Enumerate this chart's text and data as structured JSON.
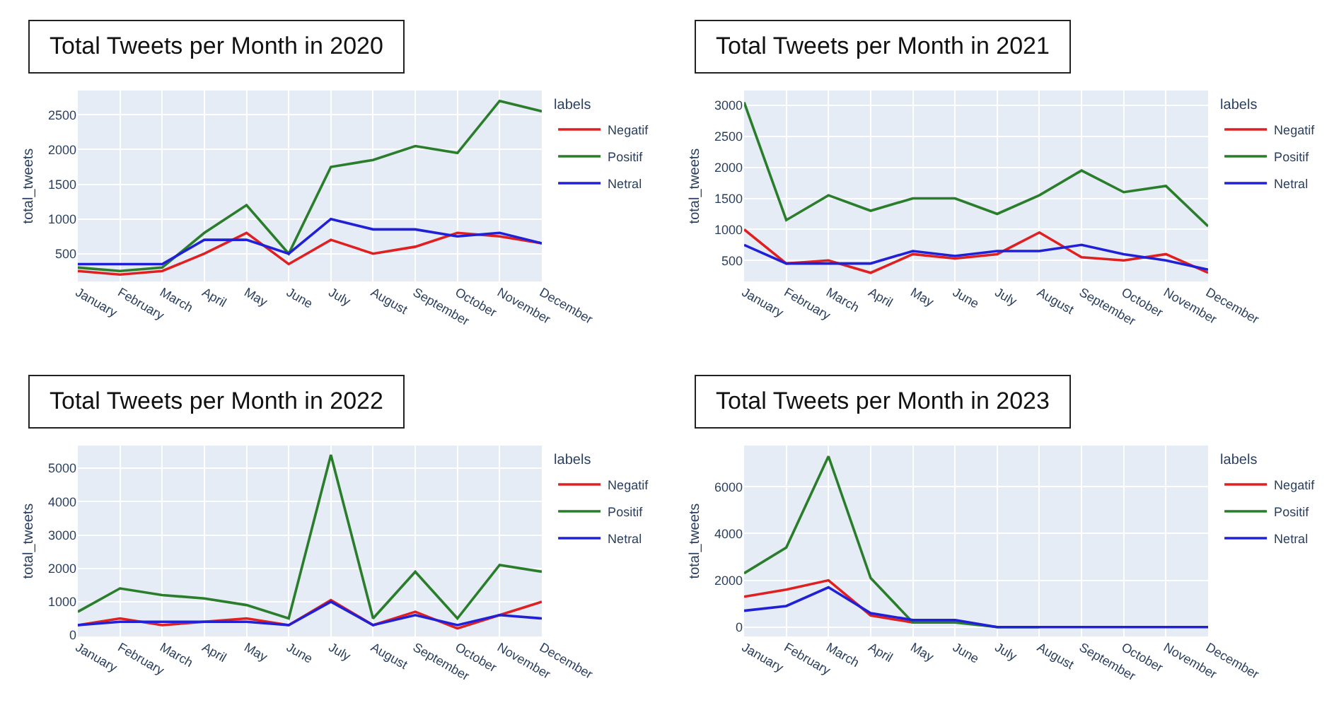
{
  "chart_data": [
    {
      "type": "line",
      "title": "Total Tweets per Month in 2020",
      "ylabel": "total_tweets",
      "legend_title": "labels",
      "legend": "right",
      "grid": true,
      "categories": [
        "January",
        "February",
        "March",
        "April",
        "May",
        "June",
        "July",
        "August",
        "September",
        "October",
        "November",
        "December"
      ],
      "ylim": [
        100,
        2850
      ],
      "yticks": [
        500,
        1000,
        1500,
        2000,
        2500
      ],
      "series": [
        {
          "name": "Negatif",
          "color": "#e02020",
          "values": [
            250,
            200,
            250,
            500,
            800,
            350,
            700,
            500,
            600,
            800,
            750,
            650
          ]
        },
        {
          "name": "Positif",
          "color": "#2a7d2a",
          "values": [
            300,
            250,
            300,
            800,
            1200,
            500,
            1750,
            1850,
            2050,
            1950,
            2700,
            2550
          ]
        },
        {
          "name": "Netral",
          "color": "#2020d8",
          "values": [
            350,
            350,
            350,
            700,
            700,
            500,
            1000,
            850,
            850,
            750,
            800,
            650
          ]
        }
      ]
    },
    {
      "type": "line",
      "title": "Total Tweets per Month in 2021",
      "ylabel": "total_tweets",
      "legend_title": "labels",
      "legend": "right",
      "grid": true,
      "categories": [
        "January",
        "February",
        "March",
        "April",
        "May",
        "June",
        "July",
        "August",
        "September",
        "October",
        "November",
        "December"
      ],
      "ylim": [
        160,
        3240
      ],
      "yticks": [
        500,
        1000,
        1500,
        2000,
        2500,
        3000
      ],
      "series": [
        {
          "name": "Negatif",
          "color": "#e02020",
          "values": [
            1000,
            450,
            500,
            300,
            600,
            530,
            600,
            950,
            550,
            500,
            600,
            300
          ]
        },
        {
          "name": "Positif",
          "color": "#2a7d2a",
          "values": [
            3050,
            1150,
            1550,
            1300,
            1500,
            1500,
            1250,
            1550,
            1950,
            1600,
            1700,
            1050
          ]
        },
        {
          "name": "Netral",
          "color": "#2020d8",
          "values": [
            750,
            450,
            450,
            450,
            650,
            570,
            650,
            650,
            750,
            600,
            500,
            350
          ]
        }
      ]
    },
    {
      "type": "line",
      "title": "Total Tweets per Month in 2022",
      "ylabel": "total_tweets",
      "legend_title": "labels",
      "legend": "right",
      "grid": true,
      "categories": [
        "January",
        "February",
        "March",
        "April",
        "May",
        "June",
        "July",
        "August",
        "September",
        "October",
        "November",
        "December"
      ],
      "ylim": [
        -40,
        5680
      ],
      "yticks": [
        0,
        1000,
        2000,
        3000,
        4000,
        5000
      ],
      "series": [
        {
          "name": "Negatif",
          "color": "#e02020",
          "values": [
            300,
            500,
            300,
            400,
            500,
            300,
            1050,
            300,
            700,
            200,
            600,
            1000
          ]
        },
        {
          "name": "Positif",
          "color": "#2a7d2a",
          "values": [
            700,
            1400,
            1200,
            1100,
            900,
            500,
            5400,
            500,
            1900,
            500,
            2100,
            1900
          ]
        },
        {
          "name": "Netral",
          "color": "#2020d8",
          "values": [
            300,
            400,
            400,
            400,
            400,
            300,
            1000,
            300,
            600,
            300,
            600,
            500
          ]
        }
      ]
    },
    {
      "type": "line",
      "title": "Total Tweets per Month in 2023",
      "ylabel": "total_tweets",
      "legend_title": "labels",
      "legend": "right",
      "grid": true,
      "categories": [
        "January",
        "February",
        "March",
        "April",
        "May",
        "June",
        "July",
        "August",
        "September",
        "October",
        "November",
        "December"
      ],
      "ylim": [
        -400,
        7760
      ],
      "yticks": [
        0,
        2000,
        4000,
        6000
      ],
      "series": [
        {
          "name": "Negatif",
          "color": "#e02020",
          "values": [
            1300,
            1600,
            2000,
            500,
            200,
            null,
            null,
            null,
            null,
            null,
            null,
            null
          ]
        },
        {
          "name": "Positif",
          "color": "#2a7d2a",
          "values": [
            2300,
            3400,
            7300,
            2100,
            200,
            200,
            0,
            0,
            null,
            null,
            null,
            null
          ]
        },
        {
          "name": "Netral",
          "color": "#2020d8",
          "values": [
            700,
            900,
            1700,
            600,
            300,
            300,
            0,
            0,
            0,
            0,
            0,
            0
          ]
        }
      ]
    }
  ]
}
